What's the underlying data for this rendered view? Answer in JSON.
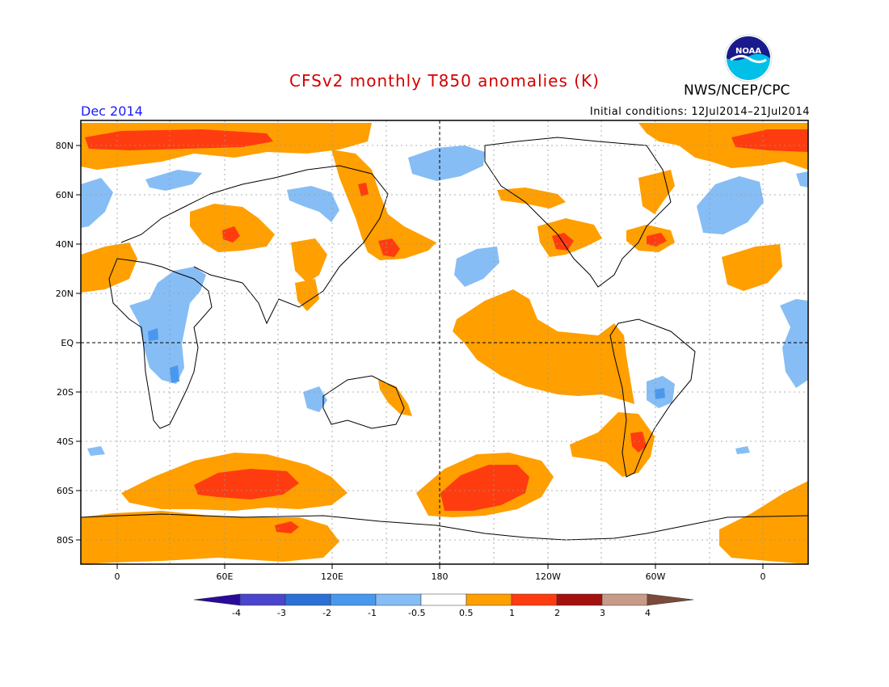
{
  "header": {
    "title": "CFSv2 monthly T850 anomalies (K)",
    "agency": "NWS/NCEP/CPC",
    "month": "Dec 2014",
    "initial_conditions": "Initial conditions: 12Jul2014–21Jul2014",
    "logo_text": "NOAA"
  },
  "axes": {
    "lon_labels": [
      "0",
      "60E",
      "120E",
      "180",
      "120W",
      "60W",
      "0"
    ],
    "lat_labels": [
      "80N",
      "60N",
      "40N",
      "20N",
      "EQ",
      "20S",
      "40S",
      "60S",
      "80S"
    ]
  },
  "colorbar": {
    "levels": [
      "-4",
      "-3",
      "-2",
      "-1",
      "-0.5",
      "0.5",
      "1",
      "2",
      "3",
      "4"
    ],
    "colors": [
      "#2a0a9a",
      "#4a45cc",
      "#2c6fd6",
      "#4a98ee",
      "#86bdf5",
      "#ffffff",
      "#ff9f00",
      "#ff3c0f",
      "#a31010",
      "#c89a88",
      "#7a4a3a"
    ]
  },
  "colors": {
    "orange": "#ff9f00",
    "red": "#ff3c0f",
    "blue": "#7db5f2",
    "darkblue": "#3f85e0",
    "title": "#d40000",
    "month": "#1a1aff"
  }
}
